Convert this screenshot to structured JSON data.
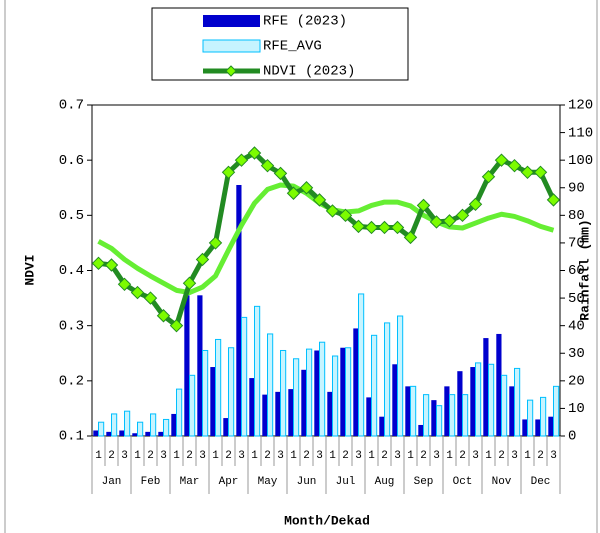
{
  "chart_data": {
    "type": "bar_line",
    "categories": [
      "1",
      "2",
      "3",
      "1",
      "2",
      "3",
      "1",
      "2",
      "3",
      "1",
      "2",
      "3",
      "1",
      "2",
      "3",
      "1",
      "2",
      "3",
      "1",
      "2",
      "3",
      "1",
      "2",
      "3",
      "1",
      "2",
      "3",
      "1",
      "2",
      "3",
      "1",
      "2",
      "3",
      "1",
      "2",
      "3"
    ],
    "months": [
      "Jan",
      "Feb",
      "Mar",
      "Apr",
      "May",
      "Jun",
      "Jul",
      "Aug",
      "Sep",
      "Oct",
      "Nov",
      "Dec"
    ],
    "xlabel": "Month/Dekad",
    "ylabel": "NDVI",
    "y2label": "Rainfall (mm)",
    "ylim": [
      0.1,
      0.7
    ],
    "yticks": [
      0.1,
      0.2,
      0.3,
      0.4,
      0.5,
      0.6,
      0.7
    ],
    "y2lim": [
      0,
      120
    ],
    "y2ticks": [
      0,
      10,
      20,
      30,
      40,
      50,
      60,
      70,
      80,
      90,
      100,
      110,
      120
    ],
    "series": [
      {
        "name": "RFE (2023)",
        "kind": "bar",
        "axis": "y2",
        "color": "#0000cd",
        "values": [
          2,
          1.5,
          2,
          1,
          1.5,
          1.5,
          8,
          51,
          51,
          25,
          6.5,
          91,
          21,
          15,
          16,
          17,
          24,
          31,
          16,
          32,
          39,
          14,
          7,
          26,
          18,
          4,
          13,
          18,
          23.5,
          25,
          35.5,
          37,
          18,
          6,
          6,
          7
        ]
      },
      {
        "name": "RFE_AVG",
        "kind": "bar",
        "axis": "y2",
        "color": "#c6f4ff",
        "edge": "#00bfff",
        "values": [
          5,
          8,
          9,
          5,
          8,
          6,
          17,
          22,
          31,
          35,
          32,
          43,
          47,
          37,
          31,
          28,
          31.5,
          34,
          29,
          32,
          51.5,
          36.5,
          41,
          43.5,
          18,
          15,
          11,
          15,
          15,
          26.5,
          26,
          22,
          24.5,
          13,
          14,
          18
        ]
      },
      {
        "kind": "line",
        "color": "#66ee33",
        "values": [
          0.453,
          0.44,
          0.42,
          0.404,
          0.39,
          0.377,
          0.364,
          0.36,
          0.37,
          0.39,
          0.437,
          0.482,
          0.522,
          0.547,
          0.555,
          0.553,
          0.54,
          0.522,
          0.51,
          0.506,
          0.508,
          0.518,
          0.524,
          0.524,
          0.517,
          0.5,
          0.488,
          0.479,
          0.477,
          0.486,
          0.495,
          0.502,
          0.498,
          0.49,
          0.48,
          0.473
        ]
      },
      {
        "name": "NDVI (2023)",
        "kind": "line",
        "color": "#228b22",
        "marker": "#7cfc00",
        "values": [
          0.413,
          0.41,
          0.375,
          0.36,
          0.35,
          0.318,
          0.3,
          0.377,
          0.42,
          0.45,
          0.578,
          0.6,
          0.613,
          0.59,
          0.576,
          0.54,
          0.55,
          0.528,
          0.508,
          0.5,
          0.48,
          0.478,
          0.478,
          0.478,
          0.46,
          0.518,
          0.488,
          0.49,
          0.5,
          0.52,
          0.57,
          0.6,
          0.59,
          0.578,
          0.578,
          0.528
        ]
      }
    ]
  }
}
